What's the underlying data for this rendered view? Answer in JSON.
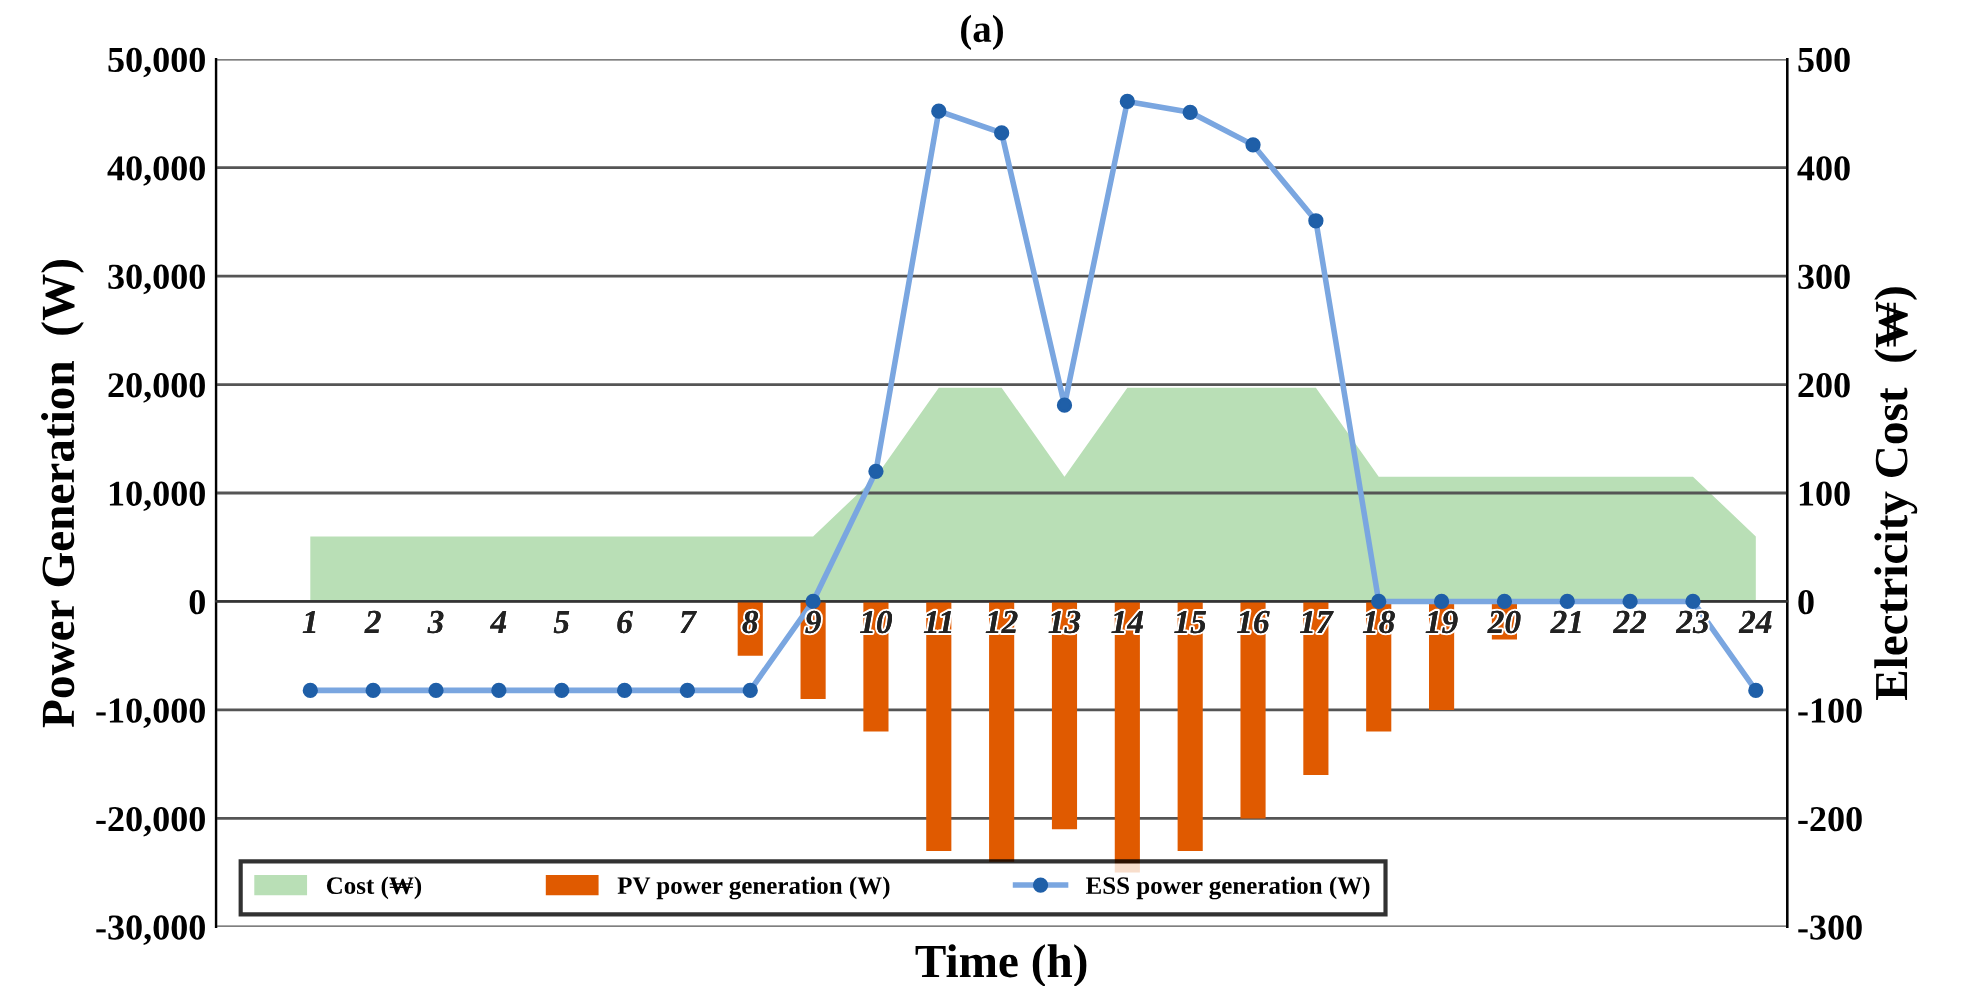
{
  "chart_data": {
    "type": "bar",
    "title": "(a)",
    "xlabel": "Time (h)",
    "ylabel": "Power Generation  (W)",
    "y2label": "Electricity Cost  (₩)",
    "categories": [
      "1",
      "2",
      "3",
      "4",
      "5",
      "6",
      "7",
      "8",
      "9",
      "10",
      "11",
      "12",
      "13",
      "14",
      "15",
      "16",
      "17",
      "18",
      "19",
      "20",
      "21",
      "22",
      "23",
      "24"
    ],
    "series": [
      {
        "name": "Cost (₩)",
        "type": "area",
        "axis": "y2",
        "color": "#b9dfb6",
        "values": [
          60,
          60,
          60,
          60,
          60,
          60,
          60,
          60,
          60,
          115,
          197,
          197,
          115,
          197,
          197,
          197,
          197,
          115,
          115,
          115,
          115,
          115,
          115,
          60
        ]
      },
      {
        "name": "PV power generation (W)",
        "color": "#e05a00",
        "values": [
          null,
          null,
          null,
          null,
          null,
          null,
          null,
          -5000,
          -9000,
          -12000,
          -23000,
          -24000,
          -21000,
          -25000,
          -23000,
          -20000,
          -16000,
          -12000,
          -10000,
          -3500,
          null,
          null,
          null,
          null
        ]
      },
      {
        "name": "ESS power generation (W)",
        "type": "line",
        "color": "#7aa6e0",
        "marker": "circle",
        "values": [
          -8200,
          -8200,
          -8200,
          -8200,
          -8200,
          -8200,
          -8200,
          -8200,
          0,
          12000,
          45200,
          43200,
          18100,
          46100,
          45100,
          42100,
          35100,
          0,
          0,
          0,
          0,
          0,
          0,
          -8200
        ]
      }
    ],
    "ylim": [
      -30000,
      50000
    ],
    "yticks": [
      {
        "value": -30000,
        "label": "-30,000"
      },
      {
        "value": -20000,
        "label": "-20,000"
      },
      {
        "value": -10000,
        "label": "-10,000"
      },
      0,
      {
        "value": 10000,
        "label": "10,000"
      },
      {
        "value": 20000,
        "label": "20,000"
      },
      {
        "value": 30000,
        "label": "30,000"
      },
      {
        "value": 40000,
        "label": "40,000"
      },
      {
        "value": 50000,
        "label": "50,000"
      }
    ],
    "y2lim": [
      -300,
      500
    ],
    "y2ticks": [
      -300,
      -200,
      -100,
      0,
      100,
      200,
      300,
      400,
      500
    ],
    "grid": "y",
    "legend": "bottom"
  }
}
